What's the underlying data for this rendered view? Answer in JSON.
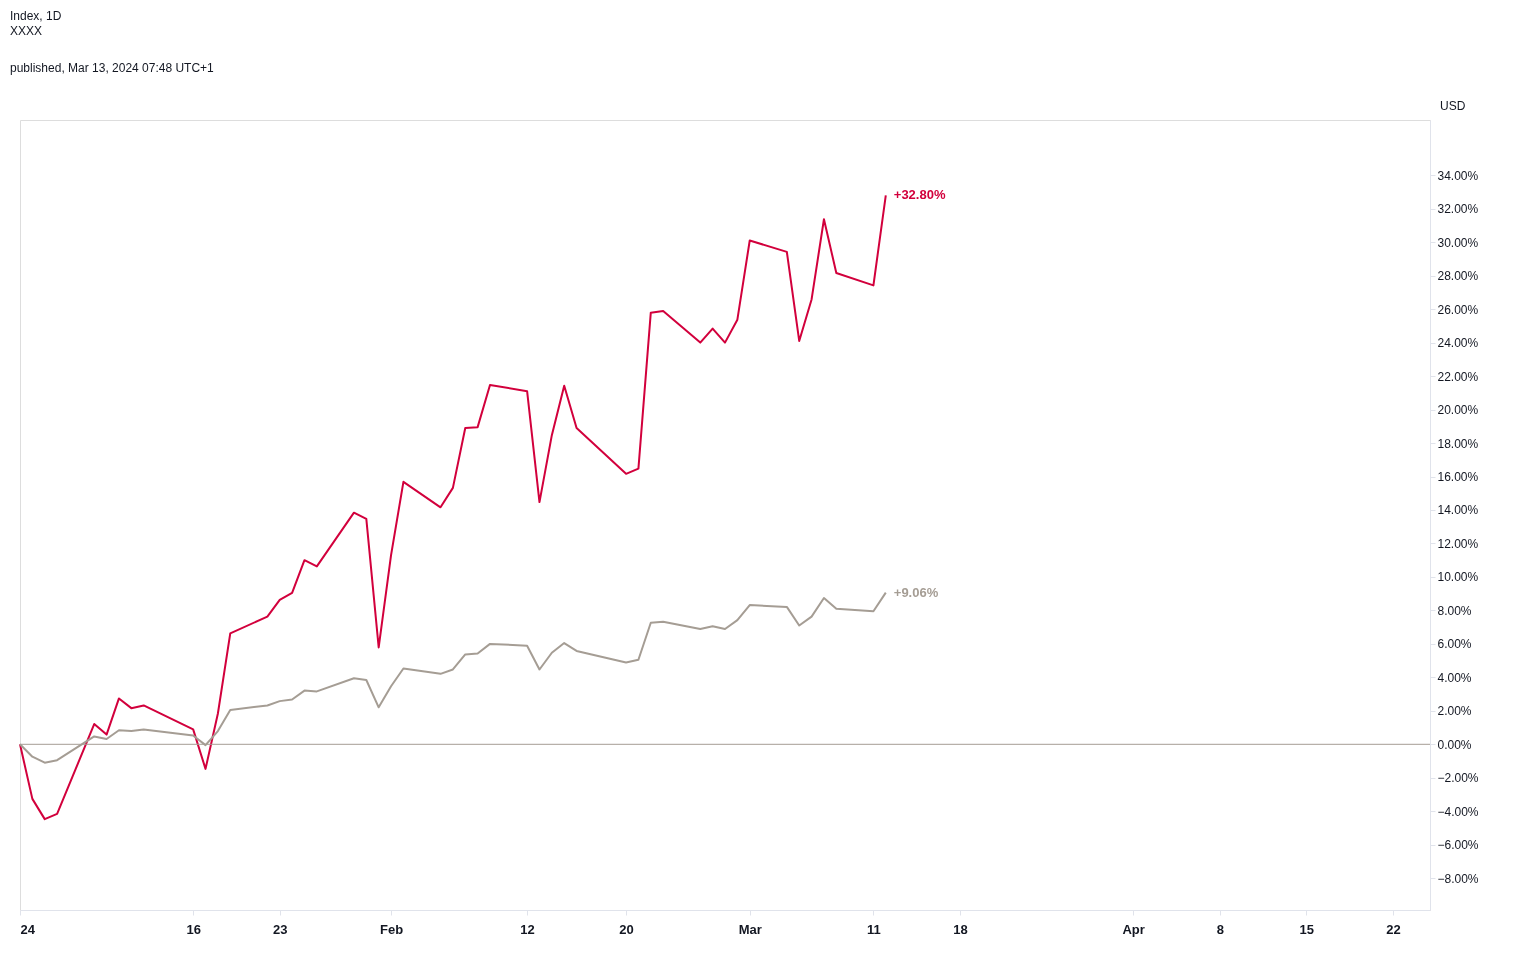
{
  "chart_data": {
    "type": "line",
    "title": "Index, 1D",
    "subtitle": "XXXX",
    "annotations": [
      "published, Mar 13, 2024 07:48 UTC+1",
      "USD"
    ],
    "x": [
      "2024-01-02",
      "2024-01-03",
      "2024-01-04",
      "2024-01-05",
      "2024-01-08",
      "2024-01-09",
      "2024-01-10",
      "2024-01-11",
      "2024-01-12",
      "2024-01-16",
      "2024-01-17",
      "2024-01-18",
      "2024-01-19",
      "2024-01-22",
      "2024-01-23",
      "2024-01-24",
      "2024-01-25",
      "2024-01-26",
      "2024-01-29",
      "2024-01-30",
      "2024-01-31",
      "2024-02-01",
      "2024-02-02",
      "2024-02-05",
      "2024-02-06",
      "2024-02-07",
      "2024-02-08",
      "2024-02-09",
      "2024-02-12",
      "2024-02-13",
      "2024-02-14",
      "2024-02-15",
      "2024-02-16",
      "2024-02-20",
      "2024-02-21",
      "2024-02-22",
      "2024-02-23",
      "2024-02-26",
      "2024-02-27",
      "2024-02-28",
      "2024-02-29",
      "2024-03-01",
      "2024-03-04",
      "2024-03-05",
      "2024-03-06",
      "2024-03-07",
      "2024-03-08",
      "2024-03-11",
      "2024-03-12"
    ],
    "series": [
      {
        "color": "#d2003c",
        "values": [
          0,
          -3.26,
          -4.47,
          -4.16,
          1.21,
          0.58,
          2.74,
          2.16,
          2.32,
          0.89,
          -1.47,
          1.84,
          6.63,
          7.63,
          8.63,
          9.05,
          11.0,
          10.63,
          13.84,
          13.47,
          5.79,
          11.3,
          15.68,
          14.16,
          15.32,
          18.9,
          18.95,
          21.47,
          21.1,
          14.47,
          18.47,
          21.42,
          18.9,
          16.16,
          16.47,
          25.79,
          25.89,
          24.0,
          24.84,
          24.0,
          25.37,
          30.1,
          29.42,
          24.1,
          26.58,
          31.37,
          28.16,
          27.42,
          32.8
        ],
        "value_labels": [
          null,
          null,
          null,
          null,
          null,
          null,
          null,
          null,
          null,
          null,
          null,
          null,
          null,
          null,
          null,
          null,
          null,
          null,
          null,
          null,
          null,
          null,
          null,
          null,
          null,
          null,
          null,
          null,
          null,
          null,
          null,
          null,
          null,
          null,
          null,
          null,
          null,
          null,
          null,
          null,
          null,
          null,
          null,
          null,
          null,
          null,
          null,
          null,
          "+32.80%"
        ]
      },
      {
        "color": "#a59d94",
        "values": [
          0,
          -0.74,
          -1.1,
          -0.95,
          0.47,
          0.32,
          0.84,
          0.79,
          0.89,
          0.53,
          -0.05,
          0.79,
          2.05,
          2.32,
          2.58,
          2.68,
          3.21,
          3.16,
          3.95,
          3.84,
          2.21,
          3.47,
          4.53,
          4.21,
          4.47,
          5.37,
          5.42,
          6.0,
          5.89,
          4.47,
          5.47,
          6.05,
          5.58,
          4.89,
          5.05,
          7.26,
          7.32,
          6.89,
          7.05,
          6.89,
          7.42,
          8.32,
          8.21,
          7.1,
          7.63,
          8.74,
          8.1,
          7.95,
          9.06
        ],
        "value_labels": [
          null,
          null,
          null,
          null,
          null,
          null,
          null,
          null,
          null,
          null,
          null,
          null,
          null,
          null,
          null,
          null,
          null,
          null,
          null,
          null,
          null,
          null,
          null,
          null,
          null,
          null,
          null,
          null,
          null,
          null,
          null,
          null,
          null,
          null,
          null,
          null,
          null,
          null,
          null,
          null,
          null,
          null,
          null,
          null,
          null,
          null,
          null,
          null,
          "+9.06%"
        ]
      }
    ],
    "xlim": [
      "2024-01-02",
      "2024-04-25"
    ],
    "xticks": [
      {
        "value": "2024-01-02",
        "label": "24"
      },
      {
        "value": "2024-01-16",
        "label": "16"
      },
      {
        "value": "2024-01-23",
        "label": "23"
      },
      {
        "value": "2024-02-01",
        "label": "Feb"
      },
      {
        "value": "2024-02-12",
        "label": "12"
      },
      {
        "value": "2024-02-20",
        "label": "20"
      },
      {
        "value": "2024-03-01",
        "label": "Mar"
      },
      {
        "value": "2024-03-11",
        "label": "11"
      },
      {
        "value": "2024-03-18",
        "label": "18"
      },
      {
        "value": "2024-04-01",
        "label": "Apr"
      },
      {
        "value": "2024-04-08",
        "label": "8"
      },
      {
        "value": "2024-04-15",
        "label": "15"
      },
      {
        "value": "2024-04-22",
        "label": "22"
      }
    ],
    "ylim": [
      -9.9,
      37.3
    ],
    "yticks": [
      {
        "value": -8,
        "label": "−8.00%"
      },
      {
        "value": -6,
        "label": "−6.00%"
      },
      {
        "value": -4,
        "label": "−4.00%"
      },
      {
        "value": -2,
        "label": "−2.00%"
      },
      {
        "value": 0,
        "label": "0.00%"
      },
      {
        "value": 2,
        "label": "2.00%"
      },
      {
        "value": 4,
        "label": "4.00%"
      },
      {
        "value": 6,
        "label": "6.00%"
      },
      {
        "value": 8,
        "label": "8.00%"
      },
      {
        "value": 10,
        "label": "10.00%"
      },
      {
        "value": 12,
        "label": "12.00%"
      },
      {
        "value": 14,
        "label": "14.00%"
      },
      {
        "value": 16,
        "label": "16.00%"
      },
      {
        "value": 18,
        "label": "18.00%"
      },
      {
        "value": 20,
        "label": "20.00%"
      },
      {
        "value": 22,
        "label": "22.00%"
      },
      {
        "value": 24,
        "label": "24.00%"
      },
      {
        "value": 26,
        "label": "26.00%"
      },
      {
        "value": 28,
        "label": "28.00%"
      },
      {
        "value": 30,
        "label": "30.00%"
      },
      {
        "value": 32,
        "label": "32.00%"
      },
      {
        "value": 34,
        "label": "34.00%"
      }
    ],
    "ref_lines": [
      {
        "axis": "y",
        "value": 0,
        "color": "#a59d94"
      }
    ],
    "grid": false,
    "legend": false,
    "marker": "none",
    "line_style": "solid"
  }
}
